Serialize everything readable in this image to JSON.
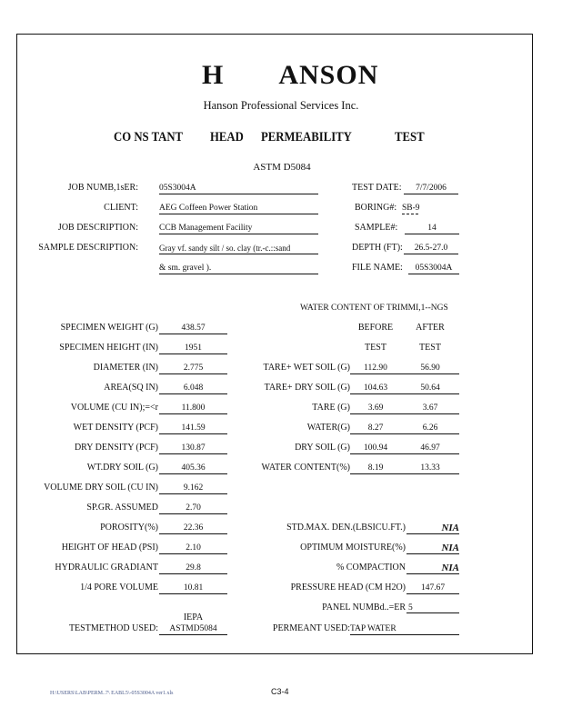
{
  "header": {
    "logo": "HANSON",
    "company": "Hanson Professional Services Inc.",
    "title_words": [
      "CO NS TANT",
      "HEAD",
      "PERMEABILITY",
      "TEST"
    ],
    "standard": "ASTM D5084"
  },
  "job_info": {
    "left": [
      {
        "label": "JOB NUMB,1sER:",
        "value": "05S3004A"
      },
      {
        "label": "CLIENT:",
        "value": "AEG Coffeen  Power Station"
      },
      {
        "label": "JOB DESCRIPTION:",
        "value": "CCB Management Facility"
      },
      {
        "label": "SAMPLE DESCRIPTION:",
        "value": "Gray vf. sandy silt / so. clay (tr.-c.::sand"
      },
      {
        "label": "",
        "value": "& sm. gravel )."
      }
    ],
    "right": [
      {
        "label": "TEST DATE:",
        "value": "7/7/2006"
      },
      {
        "label": "BORING#:",
        "value": "SB-9"
      },
      {
        "label": "SAMPLE#:",
        "value": "14"
      },
      {
        "label": "DEPTH (FT):",
        "value": "26.5-27.0"
      },
      {
        "label": "FILE NAME:",
        "value": "05S3004A"
      }
    ]
  },
  "water_content": {
    "heading": "WATER CONTENT OF TRIMMI,1--NGS",
    "col_before": [
      "BEFORE",
      "TEST"
    ],
    "col_after": [
      "AFTER",
      "TEST"
    ],
    "rows": [
      {
        "label": "TARE+  WET SOIL  (G)",
        "before": "112.90",
        "after": "56.90"
      },
      {
        "label": "TARE+ DRY  SOIL (G)",
        "before": "104.63",
        "after": "50.64"
      },
      {
        "label": "TARE (G)",
        "before": "3.69",
        "after": "3.67"
      },
      {
        "label": "WATER(G)",
        "before": "8.27",
        "after": "6.26"
      },
      {
        "label": "DRY  SOIL  (G)",
        "before": "100.94",
        "after": "46.97"
      },
      {
        "label": "WATER CONTENT(%)",
        "before": "8.19",
        "after": "13.33"
      }
    ]
  },
  "specimen": [
    {
      "label": "SPECIMEN WEIGHT (G)",
      "value": "438.57"
    },
    {
      "label": "SPECIMEN HEIGHT (IN)",
      "value": "1951"
    },
    {
      "label": "DIAMETER (IN)",
      "value": "2.775"
    },
    {
      "label": "AREA(SQ  IN)",
      "value": "6.048"
    },
    {
      "label": "VOLUME (CU IN);=<r",
      "value": "11.800"
    },
    {
      "label": "WET DENSITY (PCF)",
      "value": "141.59"
    },
    {
      "label": "DRY DENSITY (PCF)",
      "value": "130.87"
    },
    {
      "label": "WT.DRY  SOIL (G)",
      "value": "405.36"
    },
    {
      "label": "VOLUME DRY SOIL (CU IN)",
      "value": "9.162"
    },
    {
      "label": "SP.GR.    ASSUMED",
      "value": "2.70"
    },
    {
      "label": "POROSITY(%)",
      "value": "22.36"
    },
    {
      "label": "HEIGHT OF HEAD (PSI)",
      "value": "2.10"
    },
    {
      "label": "HYDRAULIC  GRADIANT",
      "value": "29.8"
    },
    {
      "label": "1/4 PORE VOLUME",
      "value": "10.81"
    }
  ],
  "compaction": [
    {
      "label": "STD.MAX.  DEN.(LBSICU.FT.)",
      "value": "NIA"
    },
    {
      "label": "OPTIMUM MOISTURE(%)",
      "value": "NIA"
    },
    {
      "label": "% COMPACTION",
      "value": "NIA"
    },
    {
      "label": "PRESSURE HEAD (CM  H2O)",
      "value": "147.67"
    },
    {
      "label": "PANEL NUMBd..=ER",
      "value": "5"
    }
  ],
  "test_method": {
    "label": "TESTMETHOD USED:",
    "above": "IEPA",
    "value": "ASTMD5084"
  },
  "permeant": {
    "label": "PERMEANT USED:",
    "value": "TAP WATER"
  },
  "footer": {
    "path": "H:\\USERS\\LAB\\PERM..7\\ EABL5\\-05S3004A  ver1.xls",
    "page": "C3-4"
  }
}
